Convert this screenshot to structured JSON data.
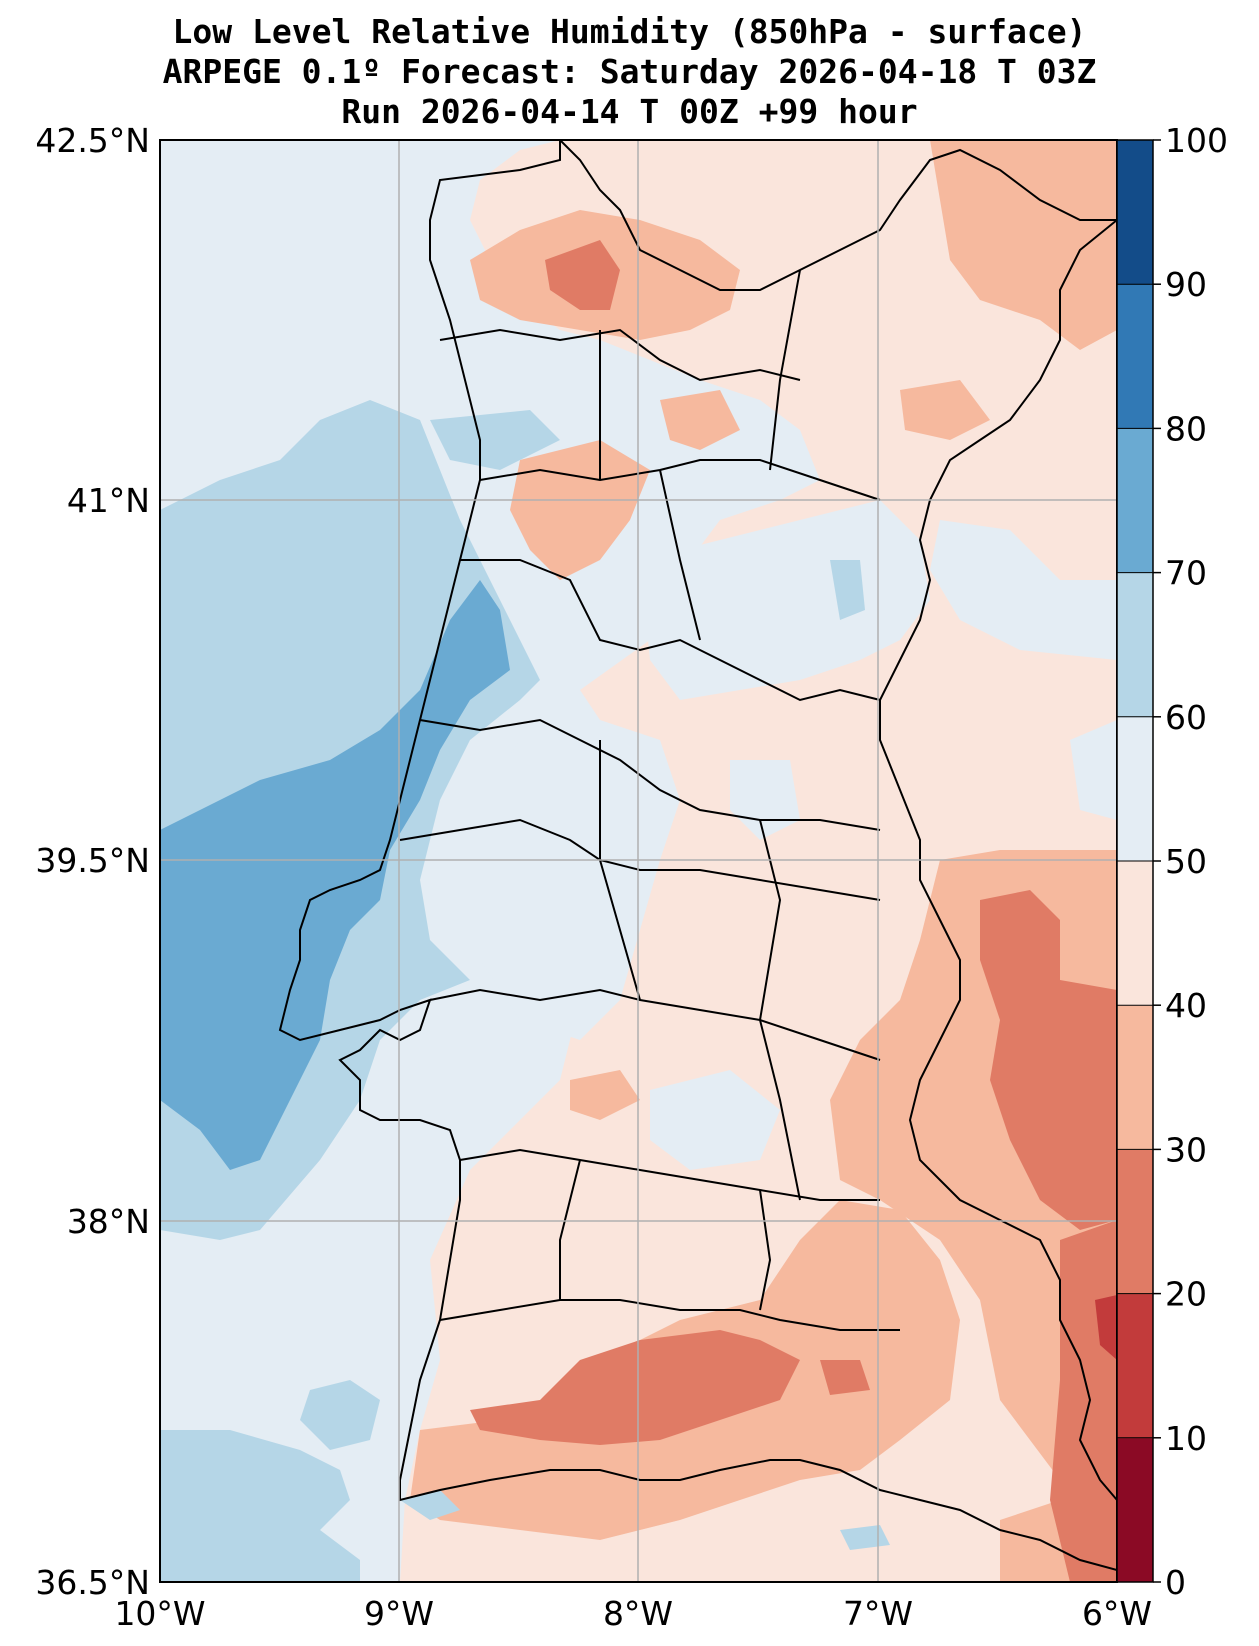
{
  "title": {
    "line1": "Low Level Relative Humidity (850hPa - surface)",
    "line2": "ARPEGE 0.1º Forecast: Saturday 2026-04-18 T 03Z",
    "line3": "Run 2026-04-14 T 00Z +99 hour"
  },
  "map": {
    "lat_labels": [
      "42.5°N",
      "41°N",
      "39.5°N",
      "38°N",
      "36.5°N"
    ],
    "lon_labels": [
      "10°W",
      "9°W",
      "8°W",
      "7°W",
      "6°W"
    ],
    "lat_range": [
      36.5,
      42.5
    ],
    "lon_range": [
      -10,
      -6
    ]
  },
  "colorbar": {
    "levels": [
      0,
      10,
      20,
      30,
      40,
      50,
      60,
      70,
      80,
      90,
      100
    ],
    "tick_labels": [
      "0",
      "10",
      "20",
      "30",
      "40",
      "50",
      "60",
      "70",
      "80",
      "90",
      "100"
    ],
    "colors": [
      "#8b0a25",
      "#c23b3b",
      "#e07b65",
      "#f6b99e",
      "#fae5dc",
      "#e4edf4",
      "#b5d6e7",
      "#6aaad2",
      "#3179b5",
      "#134c89"
    ]
  }
}
